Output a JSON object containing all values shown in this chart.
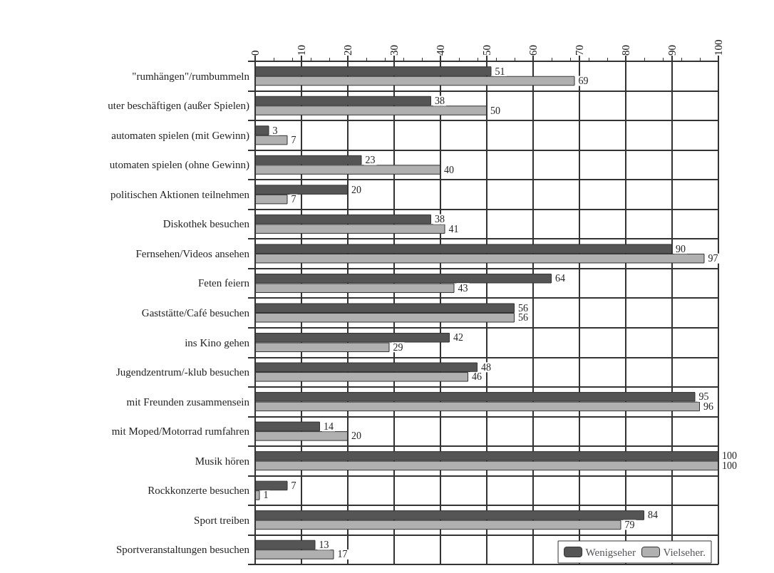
{
  "chart_data": {
    "type": "bar",
    "orientation": "horizontal",
    "categories": [
      "\"rumhängen\"/rumbummeln",
      "uter beschäftigen (außer Spielen)",
      "automaten spielen (mit Gewinn)",
      "utomaten spielen (ohne Gewinn)",
      "politischen Aktionen teilnehmen",
      "Diskothek besuchen",
      "Fernsehen/Videos ansehen",
      "Feten feiern",
      "Gaststätte/Café besuchen",
      "ins Kino gehen",
      "Jugendzentrum/-klub besuchen",
      "mit Freunden zusammensein",
      "mit Moped/Motorrad rumfahren",
      "Musik hören",
      "Rockkonzerte besuchen",
      "Sport treiben",
      "Sportveranstaltungen besuchen"
    ],
    "series": [
      {
        "name": "Wenigseher",
        "color": "#555555",
        "values": [
          51,
          38,
          3,
          23,
          20,
          38,
          90,
          64,
          56,
          42,
          48,
          95,
          14,
          100,
          7,
          84,
          13
        ]
      },
      {
        "name": "Vielseher.",
        "color": "#b0b0b0",
        "values": [
          69,
          50,
          7,
          40,
          7,
          41,
          97,
          43,
          56,
          29,
          46,
          96,
          20,
          100,
          1,
          79,
          17
        ]
      }
    ],
    "xlim": [
      0,
      100
    ],
    "xticks": [
      0,
      10,
      20,
      30,
      40,
      50,
      60,
      70,
      80,
      90,
      100
    ],
    "grid": true,
    "legend": "bottom right",
    "data_labels": true
  }
}
